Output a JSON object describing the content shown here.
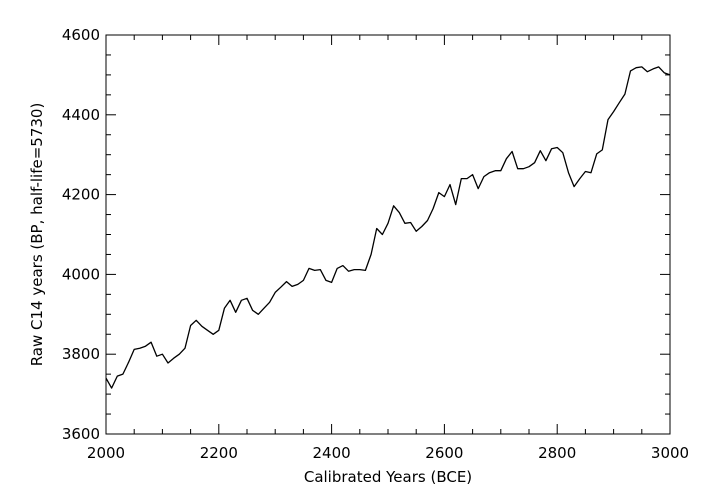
{
  "chart_data": {
    "type": "line",
    "xlabel": "Calibrated Years (BCE)",
    "ylabel": "Raw C14 years (BP, half-life=5730)",
    "xlim": [
      2000,
      3000
    ],
    "ylim": [
      3600,
      4600
    ],
    "x_ticks": [
      2000,
      2200,
      2400,
      2600,
      2800,
      3000
    ],
    "x_tick_labels": [
      "2000",
      "2200",
      "2400",
      "2600",
      "2800",
      "3000"
    ],
    "y_ticks": [
      3600,
      3800,
      4000,
      4200,
      4400,
      4600
    ],
    "y_tick_labels": [
      "3600",
      "3800",
      "4000",
      "4200",
      "4400",
      "4600"
    ],
    "grid": false,
    "legend": "none",
    "line_color": "#000000",
    "series": [
      {
        "x": [
          2000,
          2010,
          2020,
          2030,
          2040,
          2050,
          2060,
          2070,
          2080,
          2090,
          2100,
          2110,
          2120,
          2130,
          2140,
          2150,
          2160,
          2170,
          2180,
          2190,
          2200,
          2210,
          2220,
          2230,
          2240,
          2250,
          2260,
          2270,
          2280,
          2290,
          2300,
          2310,
          2320,
          2330,
          2340,
          2350,
          2360,
          2370,
          2380,
          2390,
          2400,
          2410,
          2420,
          2430,
          2440,
          2450,
          2460,
          2470,
          2480,
          2490,
          2500,
          2510,
          2520,
          2530,
          2540,
          2550,
          2560,
          2570,
          2580,
          2590,
          2600,
          2610,
          2620,
          2630,
          2640,
          2650,
          2660,
          2670,
          2680,
          2690,
          2700,
          2710,
          2720,
          2730,
          2740,
          2750,
          2760,
          2770,
          2780,
          2790,
          2800,
          2810,
          2820,
          2830,
          2840,
          2850,
          2860,
          2870,
          2880,
          2890,
          2900,
          2910,
          2920,
          2930,
          2940,
          2950,
          2960,
          2970,
          2980,
          2990,
          3000
        ],
        "y": [
          3740,
          3715,
          3745,
          3750,
          3780,
          3812,
          3815,
          3820,
          3830,
          3795,
          3800,
          3778,
          3790,
          3800,
          3815,
          3872,
          3885,
          3870,
          3860,
          3850,
          3860,
          3915,
          3935,
          3905,
          3935,
          3940,
          3910,
          3900,
          3915,
          3930,
          3955,
          3968,
          3982,
          3970,
          3975,
          3985,
          4015,
          4010,
          4012,
          3985,
          3980,
          4015,
          4022,
          4008,
          4012,
          4012,
          4010,
          4050,
          4115,
          4100,
          4128,
          4172,
          4155,
          4128,
          4130,
          4108,
          4120,
          4135,
          4165,
          4205,
          4195,
          4225,
          4175,
          4240,
          4240,
          4250,
          4215,
          4245,
          4255,
          4260,
          4260,
          4290,
          4308,
          4265,
          4265,
          4270,
          4280,
          4310,
          4285,
          4315,
          4318,
          4305,
          4255,
          4220,
          4240,
          4258,
          4255,
          4302,
          4312,
          4388,
          4408,
          4430,
          4452,
          4510,
          4518,
          4520,
          4508,
          4515,
          4520,
          4505,
          4500
        ]
      }
    ]
  }
}
